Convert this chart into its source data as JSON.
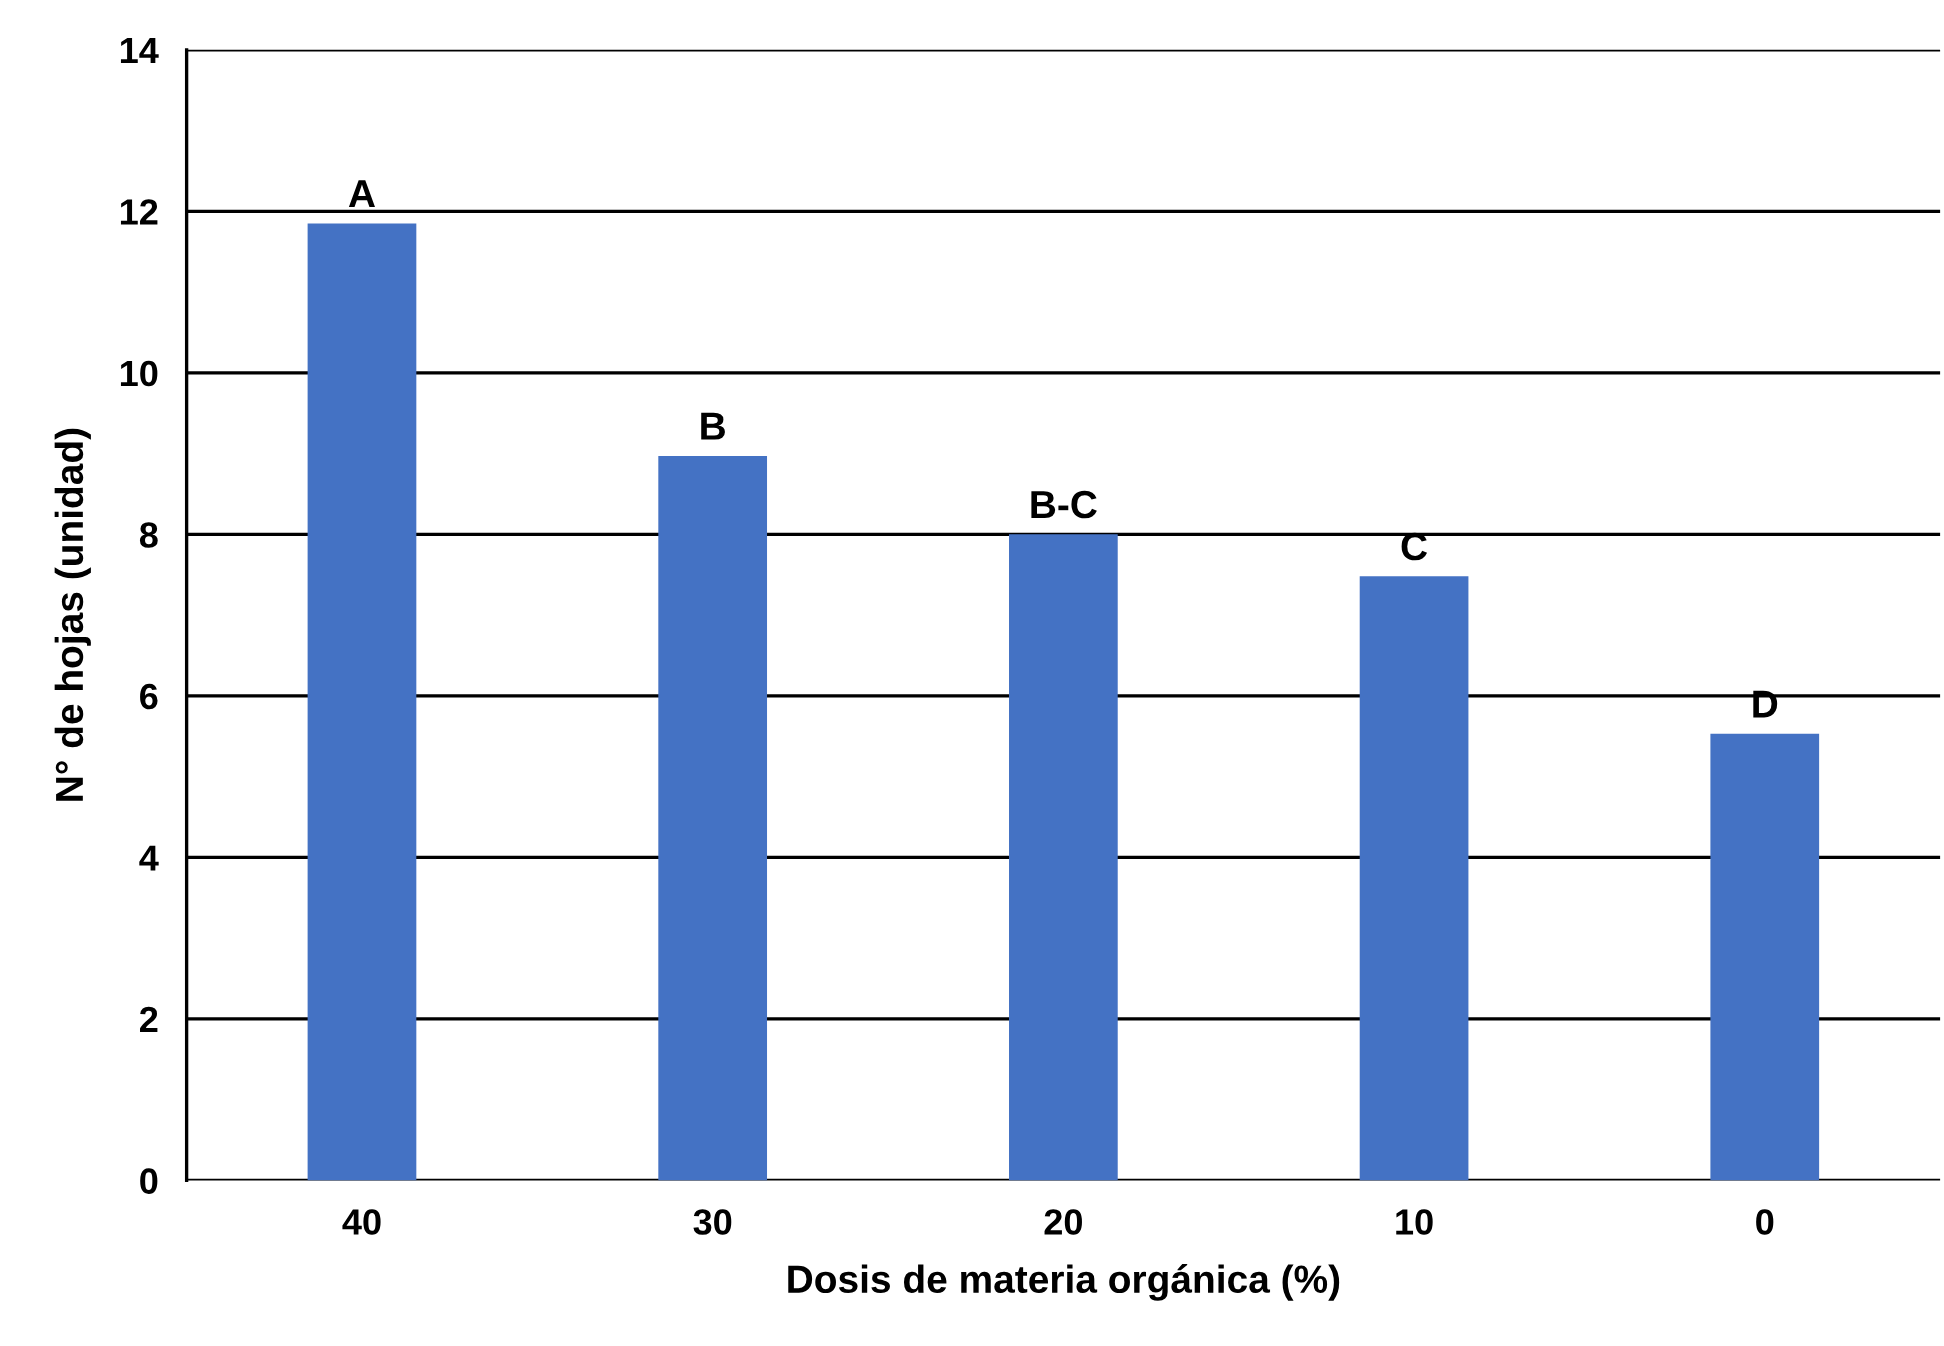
{
  "chart_data": {
    "type": "bar",
    "xlabel": "Dosis de materia orgánica (%)",
    "ylabel": "N° de hojas (unidad)",
    "categories": [
      "40",
      "30",
      "20",
      "10",
      "0"
    ],
    "values": [
      11.85,
      8.97,
      8.0,
      7.48,
      5.53
    ],
    "color": "#4472c4",
    "ylim": [
      0,
      14
    ],
    "yticks": [
      0,
      2,
      4,
      6,
      8,
      10,
      12,
      14
    ],
    "grid": "y",
    "annotations": [
      {
        "text": "A",
        "x": "40",
        "y": 11.85
      },
      {
        "text": "B",
        "x": "30",
        "y": 8.97
      },
      {
        "text": "B-C",
        "x": "20",
        "y": 8.0
      },
      {
        "text": "C",
        "x": "10",
        "y": 7.48
      },
      {
        "text": "D",
        "x": "0",
        "y": 5.53
      }
    ]
  }
}
